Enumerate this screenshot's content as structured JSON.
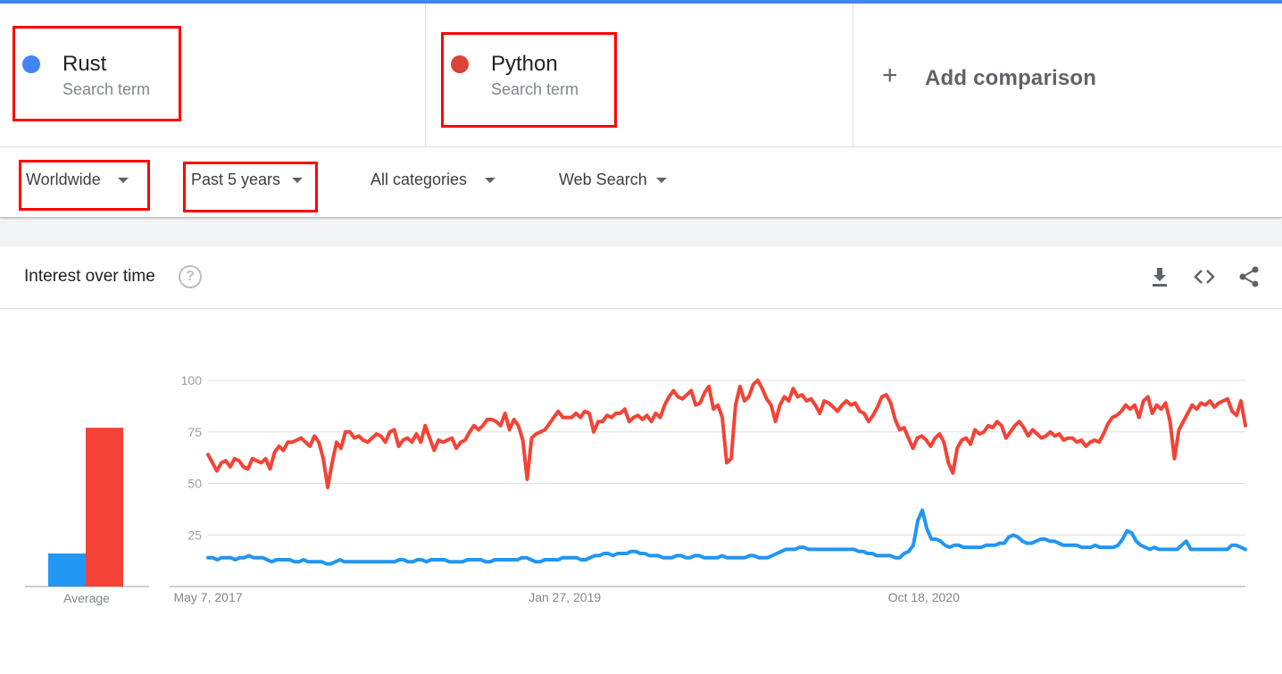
{
  "terms": [
    {
      "name": "Rust",
      "subtitle": "Search term",
      "color": "#4285f4"
    },
    {
      "name": "Python",
      "subtitle": "Search term",
      "color": "#db4437"
    }
  ],
  "add_comparison": {
    "label": "Add comparison"
  },
  "filters": {
    "region": "Worldwide",
    "time": "Past 5 years",
    "category": "All categories",
    "search_type": "Web Search"
  },
  "highlight_color": "#ff0000",
  "card": {
    "title": "Interest over time",
    "icons": [
      "help-icon",
      "download-icon",
      "embed-icon",
      "share-icon"
    ]
  },
  "chart_data": {
    "type": "line",
    "yticks": [
      25,
      50,
      75,
      100
    ],
    "ylim": [
      0,
      100
    ],
    "xtick_labels": [
      "May 7, 2017",
      "Jan 27, 2019",
      "Oct 18, 2020"
    ],
    "average_label": "Average",
    "averages": [
      {
        "name": "Rust",
        "value": 16
      },
      {
        "name": "Python",
        "value": 77
      }
    ],
    "series": [
      {
        "name": "Python",
        "color": "#f44336",
        "values": [
          64,
          60,
          56,
          60,
          61,
          58,
          62,
          61,
          58,
          57,
          62,
          61,
          60,
          62,
          57,
          65,
          68,
          66,
          70,
          70,
          71,
          72,
          70,
          68,
          73,
          70,
          62,
          48,
          60,
          70,
          67,
          75,
          75,
          72,
          73,
          71,
          70,
          72,
          74,
          73,
          70,
          75,
          76,
          68,
          71,
          72,
          70,
          74,
          70,
          78,
          72,
          66,
          71,
          70,
          71,
          72,
          67,
          70,
          71,
          75,
          78,
          76,
          78,
          81,
          81,
          80,
          78,
          84,
          76,
          81,
          78,
          71,
          52,
          72,
          74,
          75,
          76,
          79,
          82,
          85,
          82,
          82,
          82,
          84,
          82,
          85,
          84,
          75,
          80,
          80,
          83,
          82,
          84,
          84,
          86,
          80,
          82,
          83,
          81,
          83,
          80,
          84,
          82,
          88,
          92,
          95,
          92,
          91,
          93,
          95,
          88,
          89,
          94,
          97,
          86,
          88,
          82,
          60,
          62,
          88,
          97,
          90,
          92,
          98,
          100,
          96,
          91,
          88,
          80,
          88,
          92,
          90,
          96,
          92,
          93,
          90,
          91,
          88,
          84,
          90,
          89,
          87,
          85,
          88,
          90,
          88,
          89,
          85,
          84,
          80,
          83,
          87,
          92,
          93,
          89,
          81,
          76,
          77,
          72,
          67,
          72,
          73,
          71,
          68,
          72,
          74,
          70,
          60,
          55,
          67,
          71,
          72,
          69,
          76,
          74,
          75,
          78,
          77,
          80,
          78,
          72,
          75,
          78,
          80,
          77,
          73,
          76,
          74,
          72,
          73,
          75,
          73,
          74,
          71,
          72,
          72,
          70,
          71,
          68,
          70,
          71,
          70,
          74,
          79,
          82,
          83,
          85,
          88,
          86,
          88,
          82,
          90,
          92,
          84,
          88,
          86,
          89,
          80,
          62,
          76,
          80,
          84,
          88,
          86,
          89,
          88,
          90,
          87,
          89,
          90,
          91,
          85,
          83,
          90,
          78
        ]
      },
      {
        "name": "Rust",
        "color": "#2196f3",
        "values": [
          14,
          14,
          13,
          14,
          14,
          14,
          13,
          14,
          14,
          15,
          14,
          14,
          14,
          13,
          12,
          13,
          13,
          13,
          13,
          12,
          12,
          13,
          12,
          12,
          12,
          12,
          11,
          11,
          12,
          13,
          12,
          12,
          12,
          12,
          12,
          12,
          12,
          12,
          12,
          12,
          12,
          12,
          13,
          13,
          12,
          12,
          13,
          13,
          12,
          13,
          13,
          13,
          13,
          12,
          12,
          12,
          12,
          13,
          13,
          13,
          13,
          12,
          12,
          13,
          13,
          13,
          13,
          13,
          13,
          14,
          14,
          13,
          12,
          12,
          13,
          13,
          13,
          13,
          14,
          14,
          14,
          14,
          13,
          13,
          14,
          15,
          15,
          16,
          16,
          15,
          16,
          16,
          16,
          17,
          17,
          16,
          16,
          15,
          15,
          15,
          14,
          14,
          14,
          15,
          15,
          14,
          14,
          15,
          15,
          14,
          14,
          14,
          14,
          15,
          14,
          14,
          14,
          14,
          14,
          15,
          15,
          14,
          14,
          14,
          15,
          16,
          17,
          18,
          18,
          18,
          19,
          19,
          18,
          18,
          18,
          18,
          18,
          18,
          18,
          18,
          18,
          18,
          18,
          17,
          17,
          16,
          16,
          15,
          15,
          15,
          15,
          14,
          14,
          16,
          17,
          20,
          32,
          37,
          28,
          23,
          23,
          22,
          20,
          19,
          20,
          20,
          19,
          19,
          19,
          19,
          19,
          20,
          20,
          20,
          21,
          21,
          24,
          25,
          24,
          22,
          21,
          21,
          22,
          23,
          23,
          22,
          22,
          21,
          20,
          20,
          20,
          20,
          19,
          19,
          19,
          20,
          19,
          19,
          19,
          19,
          20,
          23,
          27,
          26,
          22,
          20,
          19,
          18,
          19,
          18,
          18,
          18,
          18,
          18,
          20,
          22,
          18,
          18,
          18,
          18,
          18,
          18,
          18,
          18,
          18,
          20,
          20,
          19,
          18
        ]
      }
    ]
  }
}
